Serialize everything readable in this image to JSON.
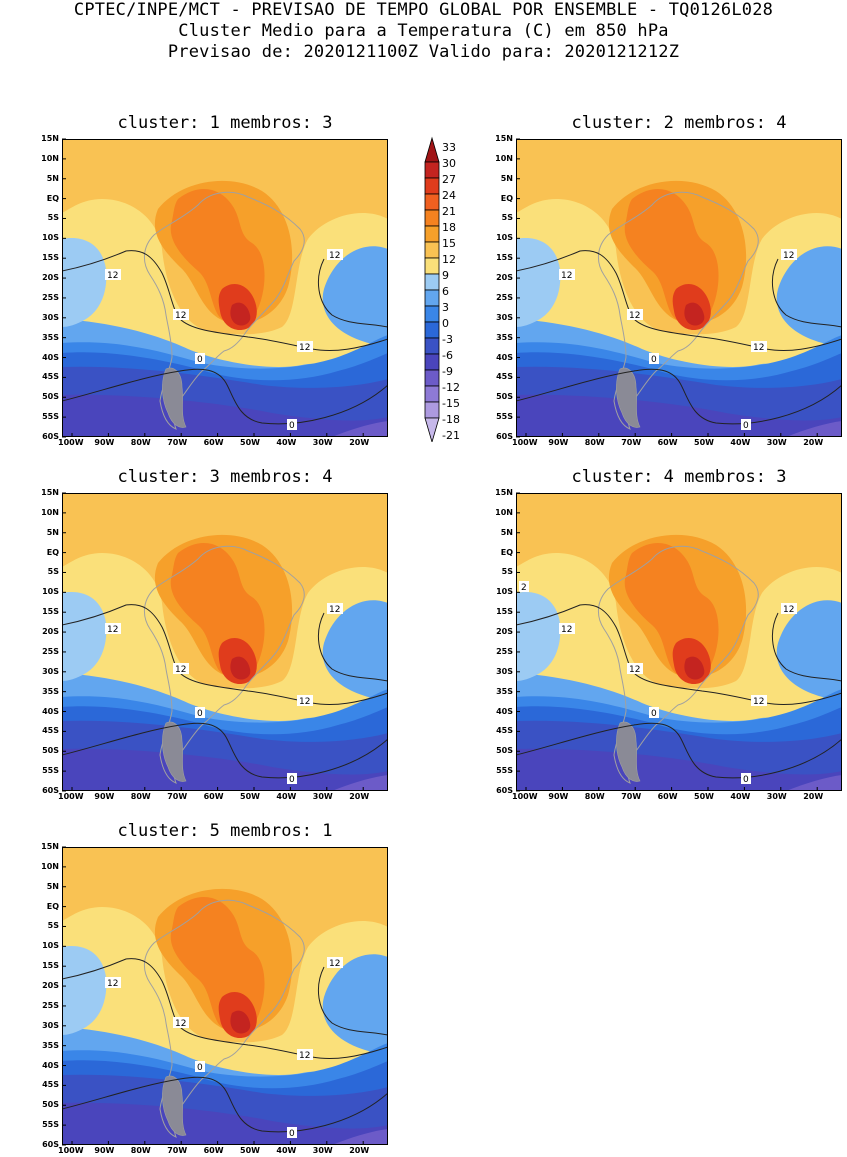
{
  "header": {
    "line1": "CPTEC/INPE/MCT - PREVISAO DE TEMPO GLOBAL POR ENSEMBLE - TQ0126L028",
    "line2": "Cluster Medio para a Temperatura (C) em 850 hPa",
    "line3": "Previsao de: 2020121100Z   Valido para: 2020121212Z"
  },
  "colors": {
    "bins": [
      "#c6b8ea",
      "#ad9ae0",
      "#8e7ad6",
      "#6c5bc8",
      "#4a45bc",
      "#3a52c4",
      "#2b68d8",
      "#3a86e8",
      "#62a6ef",
      "#9ccbf3",
      "#fae07a",
      "#f9c253",
      "#f6a02a",
      "#f58220",
      "#f06020",
      "#e03c1c",
      "#c42420",
      "#a01416"
    ],
    "water_dark": "#3a54c4",
    "land_outline": "#a0a0a0",
    "patagonia": "#8a8a96"
  },
  "colorbar": {
    "levels": [
      "33",
      "30",
      "27",
      "24",
      "21",
      "18",
      "15",
      "12",
      "9",
      "6",
      "3",
      "0",
      "-3",
      "-6",
      "-9",
      "-12",
      "-15",
      "-18",
      "-21"
    ]
  },
  "axes": {
    "lat_labels": [
      "15N",
      "10N",
      "5N",
      "EQ",
      "5S",
      "10S",
      "15S",
      "20S",
      "25S",
      "30S",
      "35S",
      "40S",
      "45S",
      "50S",
      "55S",
      "60S"
    ],
    "lon_labels": [
      "100W",
      "90W",
      "80W",
      "70W",
      "60W",
      "50W",
      "40W",
      "30W",
      "20W"
    ]
  },
  "panels": [
    {
      "id": "1",
      "title": "cluster: 1  membros: 3",
      "labels": {
        "a": "12",
        "b": "12",
        "c": "12",
        "d": "12",
        "e": "0",
        "f": "0"
      }
    },
    {
      "id": "2",
      "title": "cluster: 2  membros: 4",
      "labels": {
        "a": "12",
        "b": "12",
        "c": "12",
        "d": "12",
        "e": "0",
        "f": "0"
      }
    },
    {
      "id": "3",
      "title": "cluster: 3  membros: 4",
      "labels": {
        "a": "12",
        "b": "12",
        "c": "12",
        "d": "12",
        "e": "0",
        "f": "0"
      }
    },
    {
      "id": "4",
      "title": "cluster: 4  membros: 3",
      "labels": {
        "a": "12",
        "b": "12",
        "c": "12",
        "d": "12",
        "e": "0",
        "f": "0",
        "g": "2"
      }
    },
    {
      "id": "5",
      "title": "cluster: 5  membros: 1",
      "labels": {
        "a": "12",
        "b": "12",
        "c": "12",
        "d": "12",
        "e": "0",
        "f": "0"
      }
    }
  ]
}
